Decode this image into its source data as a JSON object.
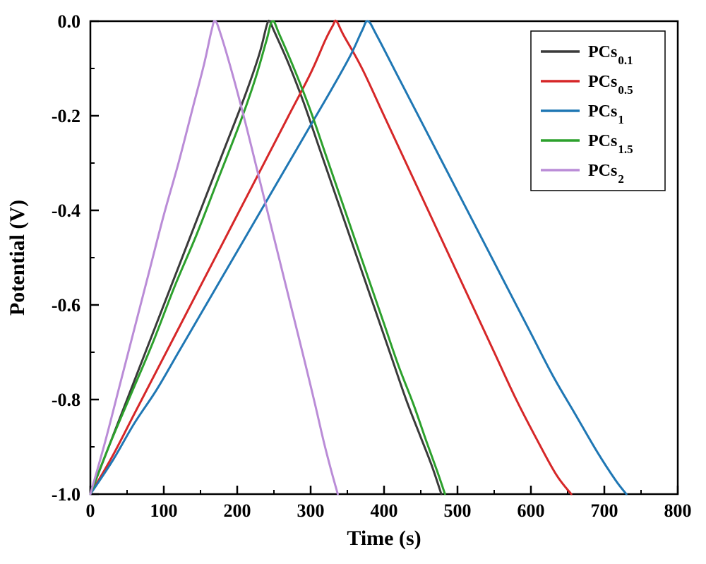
{
  "chart": {
    "type": "line",
    "background_color": "#ffffff",
    "plot_border_color": "#000000",
    "plot_border_width": 2.5,
    "line_width": 3,
    "x": {
      "label": "Time (s)",
      "min": 0,
      "max": 800,
      "tick_step": 100,
      "tick_labels": [
        "0",
        "100",
        "200",
        "300",
        "400",
        "500",
        "600",
        "700",
        "800"
      ],
      "label_fontsize": 30,
      "tick_fontsize": 26,
      "tick_major_len": 12,
      "tick_minor_len": 6
    },
    "y": {
      "label": "Potential (V)",
      "min": -1.0,
      "max": 0.0,
      "tick_step": 0.2,
      "tick_labels": [
        "0.0",
        "-0.2",
        "-0.4",
        "-0.6",
        "-0.8",
        "-1.0"
      ],
      "tick_values": [
        0.0,
        -0.2,
        -0.4,
        -0.6,
        -0.8,
        -1.0
      ],
      "label_fontsize": 30,
      "tick_fontsize": 26,
      "tick_major_len": 12,
      "tick_minor_len": 6
    },
    "legend": {
      "border_color": "#000000",
      "border_width": 1.5,
      "fontsize": 24,
      "sub_fontsize": 17,
      "line_length": 55,
      "items": [
        {
          "label": "PCs",
          "sub": "0.1",
          "color": "#3a3a3a"
        },
        {
          "label": "PCs",
          "sub": "0.5",
          "color": "#d62728"
        },
        {
          "label": "PCs",
          "sub": "1",
          "color": "#1f77b4"
        },
        {
          "label": "PCs",
          "sub": "1.5",
          "color": "#2ca02c"
        },
        {
          "label": "PCs",
          "sub": "2",
          "color": "#ba8cd7"
        }
      ]
    },
    "series": [
      {
        "name": "PCs0.1",
        "color": "#3a3a3a",
        "points": [
          [
            0,
            -1.0
          ],
          [
            30,
            -0.88
          ],
          [
            60,
            -0.76
          ],
          [
            90,
            -0.64
          ],
          [
            120,
            -0.52
          ],
          [
            150,
            -0.4
          ],
          [
            180,
            -0.28
          ],
          [
            210,
            -0.16
          ],
          [
            230,
            -0.07
          ],
          [
            240,
            -0.01
          ],
          [
            244,
            0.0
          ],
          [
            250,
            -0.02
          ],
          [
            270,
            -0.09
          ],
          [
            290,
            -0.17
          ],
          [
            310,
            -0.26
          ],
          [
            330,
            -0.35
          ],
          [
            350,
            -0.44
          ],
          [
            370,
            -0.53
          ],
          [
            390,
            -0.62
          ],
          [
            410,
            -0.71
          ],
          [
            430,
            -0.8
          ],
          [
            450,
            -0.88
          ],
          [
            465,
            -0.94
          ],
          [
            478,
            -1.0
          ]
        ]
      },
      {
        "name": "PCs0.5",
        "color": "#d62728",
        "points": [
          [
            0,
            -1.0
          ],
          [
            30,
            -0.92
          ],
          [
            60,
            -0.83
          ],
          [
            90,
            -0.74
          ],
          [
            120,
            -0.65
          ],
          [
            150,
            -0.56
          ],
          [
            180,
            -0.47
          ],
          [
            210,
            -0.38
          ],
          [
            240,
            -0.29
          ],
          [
            270,
            -0.2
          ],
          [
            300,
            -0.11
          ],
          [
            320,
            -0.04
          ],
          [
            330,
            -0.01
          ],
          [
            335,
            0.0
          ],
          [
            345,
            -0.03
          ],
          [
            370,
            -0.1
          ],
          [
            400,
            -0.2
          ],
          [
            430,
            -0.3
          ],
          [
            460,
            -0.4
          ],
          [
            490,
            -0.5
          ],
          [
            520,
            -0.6
          ],
          [
            550,
            -0.7
          ],
          [
            580,
            -0.8
          ],
          [
            610,
            -0.89
          ],
          [
            635,
            -0.96
          ],
          [
            655,
            -1.0
          ]
        ]
      },
      {
        "name": "PCs1",
        "color": "#1f77b4",
        "points": [
          [
            0,
            -1.0
          ],
          [
            30,
            -0.93
          ],
          [
            60,
            -0.85
          ],
          [
            90,
            -0.78
          ],
          [
            120,
            -0.7
          ],
          [
            150,
            -0.62
          ],
          [
            180,
            -0.54
          ],
          [
            210,
            -0.46
          ],
          [
            240,
            -0.38
          ],
          [
            270,
            -0.3
          ],
          [
            300,
            -0.22
          ],
          [
            330,
            -0.14
          ],
          [
            355,
            -0.07
          ],
          [
            370,
            -0.02
          ],
          [
            378,
            0.0
          ],
          [
            390,
            -0.03
          ],
          [
            420,
            -0.12
          ],
          [
            450,
            -0.21
          ],
          [
            480,
            -0.3
          ],
          [
            510,
            -0.39
          ],
          [
            540,
            -0.48
          ],
          [
            570,
            -0.57
          ],
          [
            600,
            -0.66
          ],
          [
            630,
            -0.75
          ],
          [
            660,
            -0.83
          ],
          [
            690,
            -0.91
          ],
          [
            715,
            -0.97
          ],
          [
            730,
            -1.0
          ]
        ]
      },
      {
        "name": "PCs1.5",
        "color": "#2ca02c",
        "points": [
          [
            0,
            -1.0
          ],
          [
            25,
            -0.9
          ],
          [
            55,
            -0.79
          ],
          [
            85,
            -0.68
          ],
          [
            115,
            -0.56
          ],
          [
            145,
            -0.45
          ],
          [
            175,
            -0.33
          ],
          [
            205,
            -0.21
          ],
          [
            225,
            -0.12
          ],
          [
            240,
            -0.04
          ],
          [
            248,
            0.0
          ],
          [
            258,
            -0.03
          ],
          [
            280,
            -0.11
          ],
          [
            300,
            -0.19
          ],
          [
            320,
            -0.28
          ],
          [
            340,
            -0.37
          ],
          [
            360,
            -0.46
          ],
          [
            380,
            -0.55
          ],
          [
            400,
            -0.64
          ],
          [
            420,
            -0.73
          ],
          [
            440,
            -0.81
          ],
          [
            458,
            -0.89
          ],
          [
            472,
            -0.95
          ],
          [
            483,
            -1.0
          ]
        ]
      },
      {
        "name": "PCs2",
        "color": "#ba8cd7",
        "points": [
          [
            0,
            -1.0
          ],
          [
            20,
            -0.89
          ],
          [
            40,
            -0.77
          ],
          [
            60,
            -0.65
          ],
          [
            80,
            -0.53
          ],
          [
            100,
            -0.41
          ],
          [
            120,
            -0.3
          ],
          [
            140,
            -0.18
          ],
          [
            155,
            -0.09
          ],
          [
            165,
            -0.02
          ],
          [
            170,
            0.0
          ],
          [
            178,
            -0.03
          ],
          [
            195,
            -0.12
          ],
          [
            212,
            -0.22
          ],
          [
            228,
            -0.32
          ],
          [
            244,
            -0.42
          ],
          [
            260,
            -0.52
          ],
          [
            276,
            -0.62
          ],
          [
            292,
            -0.72
          ],
          [
            306,
            -0.81
          ],
          [
            318,
            -0.89
          ],
          [
            328,
            -0.95
          ],
          [
            337,
            -1.0
          ]
        ]
      }
    ]
  }
}
